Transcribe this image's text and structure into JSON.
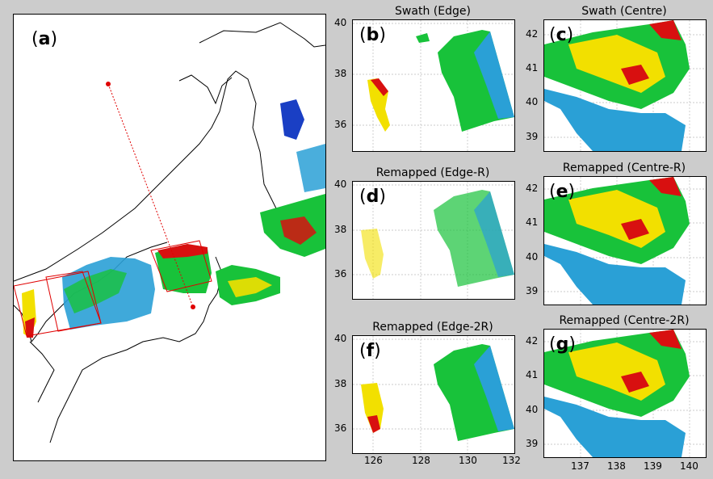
{
  "panels": {
    "a": {
      "label": "a"
    },
    "b": {
      "label": "b",
      "title": "Swath (Edge)"
    },
    "c": {
      "label": "c",
      "title": "Swath (Centre)"
    },
    "d": {
      "label": "d",
      "title": "Remapped (Edge-R)"
    },
    "e": {
      "label": "e",
      "title": "Remapped (Centre-R)"
    },
    "f": {
      "label": "f",
      "title": "Remapped (Edge-2R)"
    },
    "g": {
      "label": "g",
      "title": "Remapped (Centre-2R)"
    }
  },
  "edge_yticks": [
    "40",
    "38",
    "36"
  ],
  "centre_yticks": [
    "42",
    "41",
    "40",
    "39"
  ],
  "edge_xticks": [
    "126",
    "128",
    "130",
    "132"
  ],
  "centre_xticks": [
    "137",
    "138",
    "139",
    "140"
  ],
  "colors": {
    "low": "#1a3fc4",
    "mid": "#2aa0d6",
    "green": "#18c23a",
    "yellow": "#f2e000",
    "red": "#d81010",
    "box": "#e00000"
  }
}
